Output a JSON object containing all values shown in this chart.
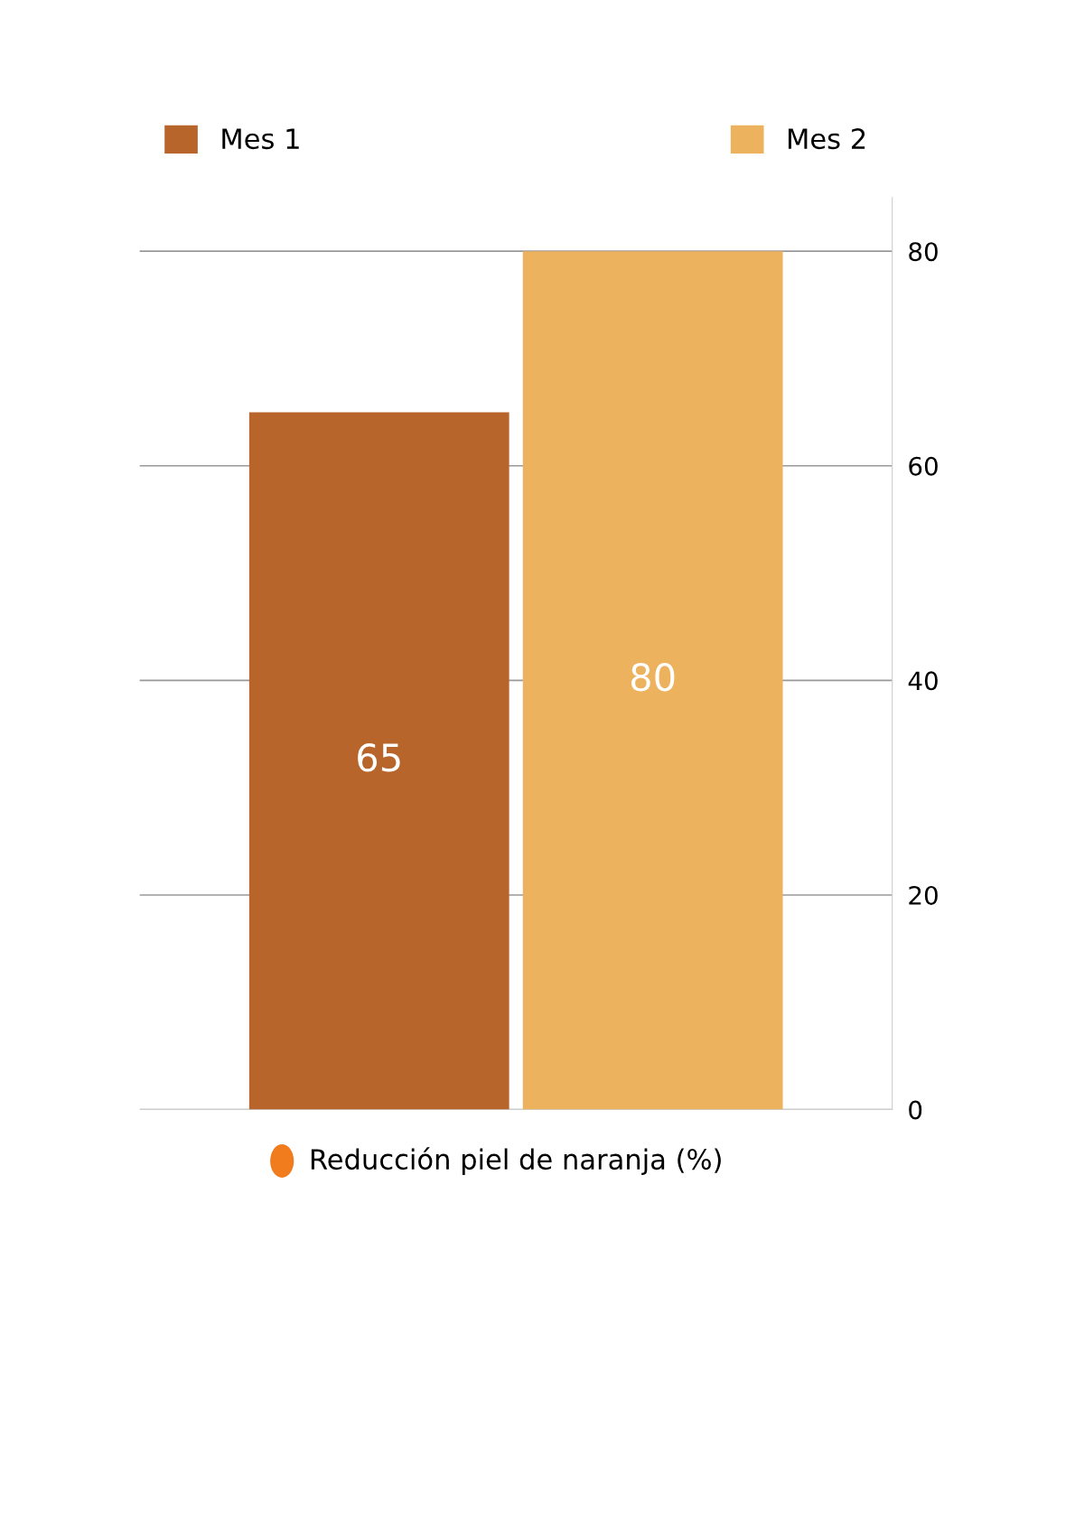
{
  "chart_data": {
    "type": "bar",
    "categories": [
      "Reducción piel de naranja (%)"
    ],
    "series": [
      {
        "name": "Mes 1",
        "color": "#b8652b",
        "values": [
          65
        ]
      },
      {
        "name": "Mes 2",
        "color": "#edb25e",
        "values": [
          80
        ]
      }
    ],
    "ylim": [
      0,
      85
    ],
    "yticks": [
      0,
      20,
      40,
      60,
      80
    ],
    "data_labels": true,
    "grid": "y",
    "legend": "top"
  }
}
